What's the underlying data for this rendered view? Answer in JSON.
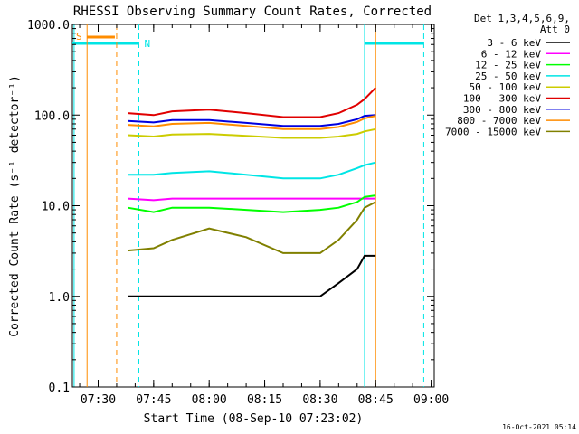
{
  "chart_data": {
    "type": "line",
    "title": "RHESSI Observing Summary Count Rates, Corrected",
    "xlabel": "Start Time (08-Sep-10 07:23:02)",
    "ylabel": "Corrected Count Rate (s⁻¹ detector⁻¹)",
    "xlim": [
      "07:23:02",
      "09:00:50"
    ],
    "ylim": [
      0.1,
      1000.0
    ],
    "yscale": "log",
    "grid": false,
    "legend_position": "right",
    "legend_header": [
      "Det 1,3,4,5,6,9,",
      "Att 0"
    ],
    "x_ticks": [
      "07:30",
      "07:45",
      "08:00",
      "08:15",
      "08:30",
      "08:45",
      "09:00"
    ],
    "y_ticks": [
      "0.1",
      "1.0",
      "10.0",
      "100.0",
      "1000.0"
    ],
    "footer_timestamp": "16-Oct-2021 05:14",
    "flags": [
      {
        "label": "S",
        "color": "#ff8c00",
        "start": "07:23:02",
        "end": "07:35:00"
      },
      {
        "label": "N",
        "color": "#00e5e5",
        "start": "07:23:02",
        "end": "07:41:00"
      },
      {
        "label": "",
        "color": "#00e5e5",
        "start": "08:42:00",
        "end": "08:58:00"
      }
    ],
    "vertical_lines": [
      {
        "time": "07:23:30",
        "color": "#00e5e5",
        "style": "solid"
      },
      {
        "time": "07:27:00",
        "color": "#ff8c00",
        "style": "solid"
      },
      {
        "time": "07:35:00",
        "color": "#ff8c00",
        "style": "dashed"
      },
      {
        "time": "07:41:00",
        "color": "#00e5e5",
        "style": "dashed"
      },
      {
        "time": "08:42:00",
        "color": "#00e5e5",
        "style": "solid"
      },
      {
        "time": "08:45:00",
        "color": "#ff8c00",
        "style": "solid"
      },
      {
        "time": "08:58:00",
        "color": "#00e5e5",
        "style": "dashed"
      }
    ],
    "series": [
      {
        "name": "3 - 6 keV",
        "color": "#000000",
        "x": [
          "07:38",
          "07:45",
          "07:50",
          "08:00",
          "08:10",
          "08:20",
          "08:30",
          "08:35",
          "08:40",
          "08:42",
          "08:45"
        ],
        "y": [
          1.0,
          1.0,
          1.0,
          1.0,
          1.0,
          1.0,
          1.0,
          1.4,
          2.0,
          2.8,
          2.8
        ]
      },
      {
        "name": "6 - 12 keV",
        "color": "#ff00ff",
        "x": [
          "07:38",
          "07:45",
          "07:50",
          "08:00",
          "08:10",
          "08:20",
          "08:30",
          "08:35",
          "08:40",
          "08:42",
          "08:45"
        ],
        "y": [
          12,
          11.5,
          12,
          12,
          12,
          12,
          12,
          12,
          12,
          12,
          12
        ]
      },
      {
        "name": "12 - 25 keV",
        "color": "#00ff00",
        "x": [
          "07:38",
          "07:45",
          "07:50",
          "08:00",
          "08:10",
          "08:20",
          "08:30",
          "08:35",
          "08:40",
          "08:42",
          "08:45"
        ],
        "y": [
          9.5,
          8.5,
          9.5,
          9.5,
          9,
          8.5,
          9,
          9.5,
          11,
          12.5,
          13
        ]
      },
      {
        "name": "25 - 50 keV",
        "color": "#00e5e5",
        "x": [
          "07:38",
          "07:45",
          "07:50",
          "08:00",
          "08:10",
          "08:20",
          "08:30",
          "08:35",
          "08:40",
          "08:42",
          "08:45"
        ],
        "y": [
          22,
          22,
          23,
          24,
          22,
          20,
          20,
          22,
          26,
          28,
          30
        ]
      },
      {
        "name": "50 - 100 keV",
        "color": "#cccc00",
        "x": [
          "07:38",
          "07:45",
          "07:50",
          "08:00",
          "08:10",
          "08:20",
          "08:30",
          "08:35",
          "08:40",
          "08:42",
          "08:45"
        ],
        "y": [
          60,
          58,
          61,
          62,
          59,
          56,
          56,
          58,
          62,
          66,
          70
        ]
      },
      {
        "name": "100 - 300 keV",
        "color": "#e00000",
        "x": [
          "07:38",
          "07:45",
          "07:50",
          "08:00",
          "08:10",
          "08:20",
          "08:30",
          "08:35",
          "08:40",
          "08:42",
          "08:45"
        ],
        "y": [
          105,
          100,
          110,
          115,
          105,
          95,
          95,
          105,
          130,
          150,
          200
        ]
      },
      {
        "name": "300 - 800 keV",
        "color": "#0000e0",
        "x": [
          "07:38",
          "07:45",
          "07:50",
          "08:00",
          "08:10",
          "08:20",
          "08:30",
          "08:35",
          "08:40",
          "08:42",
          "08:45"
        ],
        "y": [
          86,
          83,
          88,
          88,
          82,
          76,
          76,
          80,
          90,
          98,
          100
        ]
      },
      {
        "name": "800 - 7000 keV",
        "color": "#ff8c00",
        "x": [
          "07:38",
          "07:45",
          "07:50",
          "08:00",
          "08:10",
          "08:20",
          "08:30",
          "08:35",
          "08:40",
          "08:42",
          "08:45"
        ],
        "y": [
          78,
          75,
          80,
          82,
          76,
          70,
          70,
          74,
          84,
          92,
          98
        ]
      },
      {
        "name": "7000 - 15000 keV",
        "color": "#808000",
        "x": [
          "07:38",
          "07:45",
          "07:50",
          "08:00",
          "08:10",
          "08:20",
          "08:30",
          "08:35",
          "08:40",
          "08:42",
          "08:45"
        ],
        "y": [
          3.2,
          3.4,
          4.2,
          5.6,
          4.5,
          3.0,
          3.0,
          4.2,
          7.0,
          9.5,
          11
        ]
      }
    ]
  }
}
